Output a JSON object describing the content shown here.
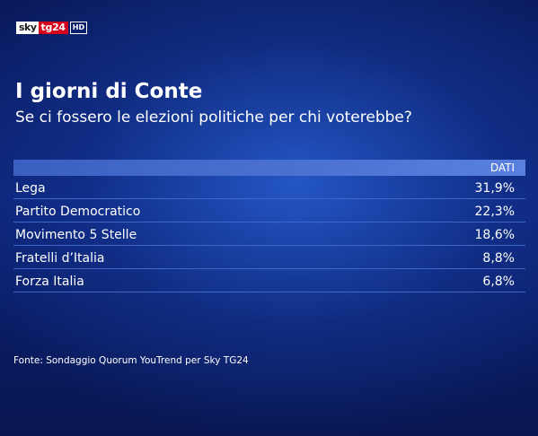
{
  "logo": {
    "sky": "sky",
    "tg24": "tg24",
    "hd": "HD"
  },
  "chart_data": {
    "type": "table",
    "title": "I giorni di Conte",
    "subtitle": "Se ci fossero le elezioni politiche per chi voterebbe?",
    "column_header": "DATI",
    "rows": [
      {
        "party": "Lega",
        "value": 31.9,
        "label": "31,9%"
      },
      {
        "party": "Partito Democratico",
        "value": 22.3,
        "label": "22,3%"
      },
      {
        "party": "Movimento 5 Stelle",
        "value": 18.6,
        "label": "18,6%"
      },
      {
        "party": "Fratelli d’Italia",
        "value": 8.8,
        "label": "8,8%"
      },
      {
        "party": "Forza Italia",
        "value": 6.8,
        "label": "6,8%"
      }
    ],
    "source": "Fonte: Sondaggio Quorum YouTrend per Sky TG24"
  },
  "colors": {
    "background": "#0c2378",
    "header_band": "#4c73d4",
    "row_divider": "#3f67c7",
    "logo_red": "#d6001c"
  }
}
